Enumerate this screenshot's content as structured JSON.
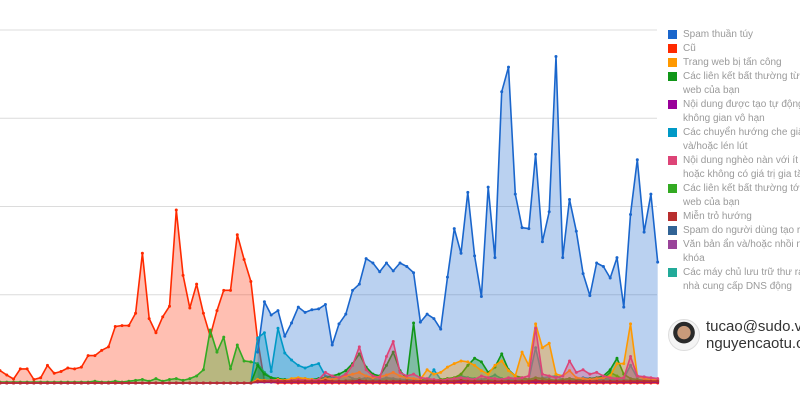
{
  "chart_data": {
    "type": "area",
    "title": "",
    "xlabel": "",
    "ylabel": "",
    "ylim": [
      0,
      400
    ],
    "grid": true,
    "gridlines": [
      100,
      200,
      300,
      400
    ],
    "legend_position": "right",
    "series": [
      {
        "name": "Cũ",
        "color": "#ff2a00",
        "values": [
          14,
          9,
          4.5,
          16,
          16,
          4,
          6,
          20,
          11,
          13,
          17,
          16,
          18,
          31,
          31,
          37,
          41,
          64,
          65,
          65,
          79,
          147,
          73,
          57,
          75,
          87,
          196,
          122,
          85,
          112,
          79,
          53,
          82,
          105,
          105,
          168,
          140,
          115,
          49,
          2,
          1,
          0,
          0,
          0,
          0,
          0,
          0,
          0,
          0,
          0,
          0,
          0,
          0,
          0,
          0,
          0,
          0,
          0,
          0,
          0,
          0,
          0,
          0,
          0,
          0,
          0,
          0,
          0,
          0,
          0,
          0,
          0,
          0,
          0,
          0,
          0,
          0,
          0,
          0,
          0,
          0,
          0,
          0,
          0,
          0,
          0,
          0,
          0,
          0,
          0,
          0,
          0,
          0,
          0,
          0,
          0,
          0,
          0
        ]
      },
      {
        "name": "Spam thuần túy",
        "color": "#1a66cc",
        "values": [
          null,
          null,
          null,
          null,
          null,
          null,
          null,
          null,
          null,
          null,
          null,
          null,
          null,
          null,
          null,
          null,
          null,
          null,
          null,
          null,
          null,
          null,
          null,
          null,
          null,
          null,
          null,
          null,
          null,
          null,
          null,
          null,
          null,
          null,
          null,
          null,
          null,
          null,
          35,
          92,
          77,
          82,
          53,
          68,
          86,
          80,
          83,
          84,
          89,
          43,
          67,
          78,
          105,
          112,
          141,
          136,
          126,
          136,
          127,
          136,
          132,
          125,
          69,
          78,
          73,
          61,
          120,
          175,
          147,
          216,
          144,
          98,
          222,
          142,
          330,
          358,
          214,
          176,
          175,
          259,
          160,
          194,
          370,
          142,
          208,
          172,
          124,
          99,
          136,
          132,
          119,
          142,
          86,
          191,
          253,
          171,
          214,
          137
        ]
      },
      {
        "name": "Các liên kết bất thường tới trang web của bạn",
        "color": "#33aa22",
        "values": [
          1,
          1,
          1,
          1,
          1,
          1,
          1,
          1,
          1,
          1,
          1,
          1,
          1,
          1,
          2,
          1,
          1,
          2,
          1,
          2,
          3,
          4,
          2,
          5,
          2,
          4,
          5,
          3,
          5,
          8,
          15,
          60,
          35,
          52,
          16,
          43,
          25,
          24,
          22,
          12,
          6,
          4,
          3,
          3,
          2,
          2,
          3,
          2,
          3,
          2,
          2,
          3,
          4,
          5,
          3,
          4,
          3,
          5,
          4,
          3,
          2,
          3,
          2,
          2,
          3,
          2,
          3,
          4,
          5,
          4,
          3,
          4,
          3,
          5,
          4,
          3,
          3,
          4,
          3,
          4,
          3,
          3,
          2,
          3,
          4,
          3,
          3,
          2,
          3,
          5,
          12,
          8,
          4,
          3,
          3,
          2,
          2,
          2
        ]
      },
      {
        "name": "Các chuyển hướng che giấu và/hoặc lén lút",
        "color": "#0099c6",
        "values": [
          0,
          0,
          0,
          0,
          0,
          0,
          0,
          0,
          0,
          0,
          0,
          0,
          0,
          0,
          0,
          0,
          0,
          0,
          0,
          0,
          0,
          0,
          0,
          0,
          0,
          0,
          0,
          0,
          0,
          0,
          0,
          0,
          0,
          0,
          0,
          0,
          0,
          0,
          51,
          57,
          13,
          62,
          34,
          26,
          20,
          17,
          20,
          22,
          8,
          7,
          6,
          10,
          5,
          4,
          6,
          5,
          4,
          6,
          5,
          4,
          4,
          3,
          4,
          3,
          15,
          4,
          5,
          4,
          8,
          6,
          5,
          4,
          6,
          9,
          5,
          4,
          5,
          6,
          4,
          40,
          6,
          7,
          8,
          4,
          5,
          4,
          6,
          5,
          4,
          5,
          4,
          4,
          5,
          20,
          6,
          7,
          5,
          4
        ]
      },
      {
        "name": "Các liên kết bất thường từ trang web của bạn",
        "color": "#109618",
        "values": [
          0,
          0,
          0,
          0,
          0,
          0,
          0,
          0,
          0,
          0,
          0,
          0,
          0,
          0,
          0,
          0,
          0,
          0,
          0,
          0,
          0,
          0,
          0,
          0,
          0,
          0,
          0,
          0,
          0,
          0,
          0,
          0,
          0,
          0,
          0,
          0,
          0,
          0,
          20,
          10,
          6,
          5,
          4,
          4,
          5,
          5,
          4,
          5,
          6,
          8,
          10,
          14,
          22,
          33,
          18,
          10,
          8,
          20,
          35,
          14,
          5,
          68,
          4,
          3,
          3,
          4,
          5,
          6,
          10,
          20,
          28,
          24,
          12,
          18,
          33,
          15,
          8,
          6,
          4,
          6,
          5,
          4,
          3,
          4,
          5,
          4,
          4,
          5,
          6,
          8,
          15,
          28,
          10,
          5,
          4,
          3,
          3,
          3
        ]
      },
      {
        "name": "Trang web bị tấn công",
        "color": "#ff9900",
        "values": [
          0,
          0,
          0,
          0,
          0,
          0,
          0,
          0,
          0,
          0,
          0,
          0,
          0,
          0,
          0,
          0,
          0,
          0,
          0,
          0,
          0,
          0,
          0,
          0,
          0,
          0,
          0,
          0,
          0,
          0,
          0,
          0,
          0,
          0,
          0,
          0,
          0,
          0,
          4,
          3,
          3,
          4,
          3,
          5,
          6,
          5,
          4,
          3,
          5,
          4,
          6,
          8,
          10,
          12,
          8,
          6,
          7,
          9,
          12,
          8,
          6,
          5,
          4,
          15,
          10,
          12,
          18,
          22,
          25,
          24,
          20,
          14,
          10,
          20,
          25,
          14,
          8,
          35,
          20,
          67,
          40,
          45,
          10,
          8,
          14,
          6,
          5,
          4,
          5,
          6,
          8,
          22,
          22,
          67,
          8,
          5,
          4,
          4
        ]
      },
      {
        "name": "Nội dung nghèo nàn với ít giá trị hoặc không có giá trị gia tăng",
        "color": "#dd4477",
        "values": [
          0,
          0,
          0,
          0,
          0,
          0,
          0,
          0,
          0,
          0,
          0,
          0,
          0,
          0,
          0,
          0,
          0,
          0,
          0,
          0,
          0,
          0,
          0,
          0,
          0,
          0,
          0,
          0,
          0,
          0,
          0,
          0,
          0,
          0,
          0,
          0,
          0,
          0,
          2,
          2,
          3,
          3,
          2,
          3,
          4,
          3,
          3,
          4,
          12,
          8,
          6,
          10,
          20,
          41,
          15,
          8,
          6,
          30,
          47,
          12,
          8,
          10,
          6,
          5,
          4,
          3,
          4,
          5,
          6,
          5,
          4,
          8,
          6,
          5,
          4,
          6,
          5,
          6,
          8,
          62,
          10,
          8,
          6,
          8,
          25,
          12,
          15,
          10,
          12,
          8,
          6,
          5,
          6,
          30,
          8,
          7,
          6,
          5
        ]
      },
      {
        "name": "Nội dung được tạo tự động trong không gian vô hạn",
        "color": "#990099",
        "values": [
          0,
          0,
          0,
          0,
          0,
          0,
          0,
          0,
          0,
          0,
          0,
          0,
          0,
          0,
          0,
          0,
          0,
          0,
          0,
          0,
          0,
          0,
          0,
          0,
          0,
          0,
          0,
          0,
          0,
          0,
          0,
          0,
          0,
          0,
          0,
          0,
          0,
          0,
          1,
          1,
          1,
          1,
          1,
          1,
          1,
          1,
          1,
          1,
          1,
          1,
          1,
          1,
          1,
          1,
          1,
          1,
          1,
          1,
          1,
          1,
          1,
          1,
          1,
          1,
          1,
          1,
          1,
          1,
          1,
          1,
          1,
          1,
          1,
          1,
          1,
          1,
          1,
          1,
          1,
          1,
          1,
          1,
          1,
          1,
          1,
          1,
          1,
          1,
          1,
          1,
          1,
          1,
          1,
          1,
          1,
          1,
          1,
          1
        ]
      },
      {
        "name": "Miễn trỏ hướng",
        "color": "#b82e2e",
        "values": [
          0,
          0,
          0,
          0,
          0,
          0,
          0,
          0,
          0,
          0,
          0,
          0,
          0,
          0,
          0,
          0,
          0,
          0,
          0,
          0,
          0,
          0,
          0,
          0,
          0,
          0,
          0,
          0,
          0,
          0,
          0,
          0,
          0,
          0,
          0,
          0,
          0,
          0,
          2,
          2,
          2,
          2,
          2,
          2,
          2,
          2,
          2,
          2,
          3,
          2,
          2,
          2,
          2,
          3,
          2,
          2,
          2,
          2,
          2,
          2,
          2,
          2,
          2,
          2,
          2,
          2,
          2,
          2,
          3,
          2,
          2,
          2,
          2,
          2,
          2,
          2,
          2,
          2,
          2,
          3,
          2,
          2,
          2,
          2,
          2,
          2,
          2,
          2,
          2,
          2,
          2,
          2,
          2,
          2,
          2,
          2,
          2,
          2
        ]
      }
    ],
    "legend": [
      {
        "lines": [
          "Spam thuần túy"
        ],
        "color": "#1a66cc"
      },
      {
        "lines": [
          "Cũ"
        ],
        "color": "#ff2a00"
      },
      {
        "lines": [
          "Trang web bị tấn công"
        ],
        "color": "#ff9900"
      },
      {
        "lines": [
          "Các liên kết bất thường từ tr",
          "web của bạn"
        ],
        "color": "#109618"
      },
      {
        "lines": [
          "Nội dung được tạo tự động",
          "không gian vô hạn"
        ],
        "color": "#990099"
      },
      {
        "lines": [
          "Các chuyển hướng che giấu",
          "và/hoặc lén lút"
        ],
        "color": "#0099c6"
      },
      {
        "lines": [
          "Nội dung nghèo nàn với ít g",
          "hoặc không có giá trị gia tăn"
        ],
        "color": "#dd4477"
      },
      {
        "lines": [
          "Các liên kết bất thường tới t",
          "web của bạn"
        ],
        "color": "#33aa22"
      },
      {
        "lines": [
          "Miễn trỏ hướng"
        ],
        "color": "#b82e2e"
      },
      {
        "lines": [
          "Spam do người dùng tạo ra"
        ],
        "color": "#316395"
      },
      {
        "lines": [
          "Văn bản ẩn và/hoặc nhồi nh",
          "khóa"
        ],
        "color": "#994499"
      },
      {
        "lines": [
          "Các máy chủ lưu trữ thư rác",
          "nhà cung cấp DNS động"
        ],
        "color": "#22aa99"
      }
    ]
  },
  "author": {
    "line1": "tucao@sudo.v",
    "line2": "nguyencaotu.c"
  }
}
